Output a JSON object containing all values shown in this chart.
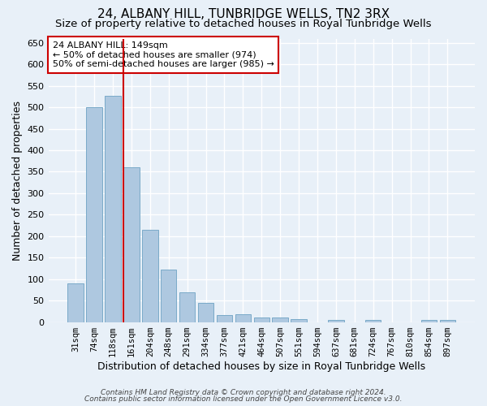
{
  "title": "24, ALBANY HILL, TUNBRIDGE WELLS, TN2 3RX",
  "subtitle": "Size of property relative to detached houses in Royal Tunbridge Wells",
  "xlabel": "Distribution of detached houses by size in Royal Tunbridge Wells",
  "ylabel": "Number of detached properties",
  "categories": [
    "31sqm",
    "74sqm",
    "118sqm",
    "161sqm",
    "204sqm",
    "248sqm",
    "291sqm",
    "334sqm",
    "377sqm",
    "421sqm",
    "464sqm",
    "507sqm",
    "551sqm",
    "594sqm",
    "637sqm",
    "681sqm",
    "724sqm",
    "767sqm",
    "810sqm",
    "854sqm",
    "897sqm"
  ],
  "values": [
    90,
    500,
    527,
    360,
    215,
    122,
    70,
    44,
    17,
    18,
    10,
    11,
    7,
    0,
    5,
    0,
    5,
    0,
    0,
    5,
    5
  ],
  "bar_color": "#aec8e0",
  "bar_edge_color": "#7aaac8",
  "vline_x_pos": 2.575,
  "vline_color": "#cc0000",
  "annotation_text": "24 ALBANY HILL: 149sqm\n← 50% of detached houses are smaller (974)\n50% of semi-detached houses are larger (985) →",
  "annotation_box_color": "#ffffff",
  "annotation_box_edge": "#cc0000",
  "bg_color": "#e8f0f8",
  "grid_color": "#ffffff",
  "footer_line1": "Contains HM Land Registry data © Crown copyright and database right 2024.",
  "footer_line2": "Contains public sector information licensed under the Open Government Licence v3.0.",
  "ylim": [
    0,
    660
  ],
  "ytick_step": 50,
  "title_fontsize": 11,
  "subtitle_fontsize": 9.5,
  "tick_fontsize": 7.5,
  "label_fontsize": 9,
  "footer_fontsize": 6.5,
  "ann_fontsize": 8
}
